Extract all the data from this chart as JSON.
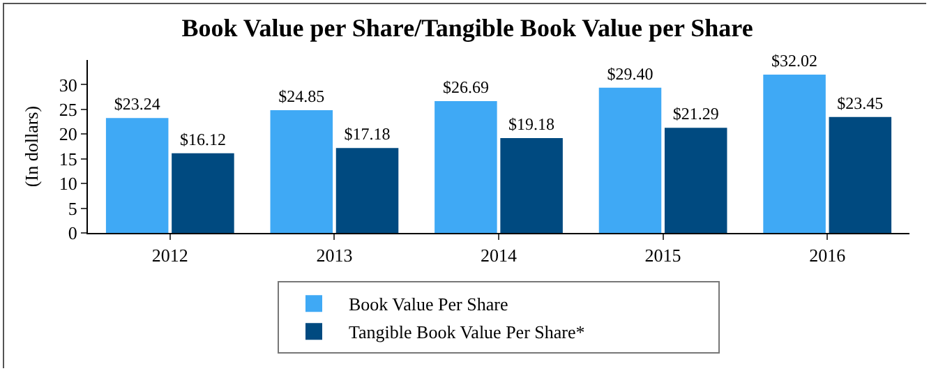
{
  "chart_data": {
    "type": "bar",
    "title": "Book Value per Share/Tangible Book Value per Share",
    "ylabel": "(In dollars)",
    "categories": [
      "2012",
      "2013",
      "2014",
      "2015",
      "2016"
    ],
    "series": [
      {
        "name": "Book Value Per Share",
        "color": "#3fa9f5",
        "values": [
          23.24,
          24.85,
          26.69,
          29.4,
          32.02
        ],
        "value_labels": [
          "$23.24",
          "$24.85",
          "$26.69",
          "$29.40",
          "$32.02"
        ]
      },
      {
        "name": "Tangible Book Value Per Share*",
        "color": "#004a80",
        "values": [
          16.12,
          17.18,
          19.18,
          21.29,
          23.45
        ],
        "value_labels": [
          "$16.12",
          "$17.18",
          "$19.18",
          "$21.29",
          "$23.45"
        ]
      }
    ],
    "ylim": [
      0,
      35
    ],
    "yticks": [
      0,
      5,
      10,
      15,
      20,
      25,
      30
    ],
    "grid": false,
    "legend": "bottom"
  }
}
